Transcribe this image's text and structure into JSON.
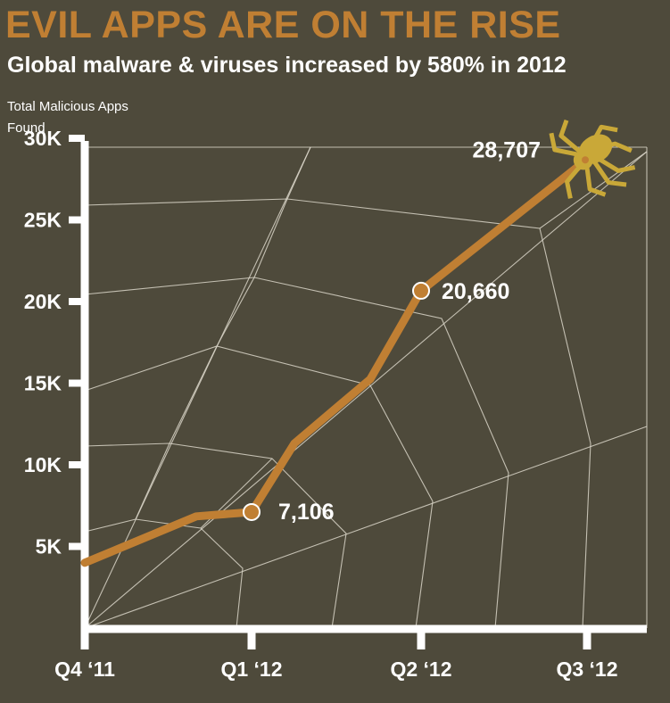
{
  "chart_data": {
    "type": "line",
    "title": "EVIL APPS ARE ON THE RISE",
    "subtitle": "Global malware & viruses increased by 580% in 2012",
    "ylabel": "Total Malicious Apps Found",
    "xlabel": "",
    "categories": [
      "Q4 ‘11",
      "Q1 ‘12",
      "Q2 ‘12",
      "Q3 ‘12"
    ],
    "yticks": [
      {
        "value": 5000,
        "label": "5K"
      },
      {
        "value": 10000,
        "label": "10K"
      },
      {
        "value": 15000,
        "label": "15K"
      },
      {
        "value": 20000,
        "label": "20K"
      },
      {
        "value": 25000,
        "label": "25K"
      },
      {
        "value": 30000,
        "label": "30K"
      }
    ],
    "ylim": [
      0,
      30000
    ],
    "series": [
      {
        "values": [
          4000,
          7106,
          20660,
          28707
        ],
        "data_labels": [
          "",
          "7,106",
          "20,660",
          "28,707"
        ]
      }
    ],
    "grid": false,
    "colors": {
      "background": "#4e4a3b",
      "line": "#c07f33",
      "title": "#c07f33",
      "spider": "#c9a838",
      "web": "#d9d5c8",
      "text": "#ffffff"
    },
    "decoration": "spider-web-icon, spider-icon"
  }
}
